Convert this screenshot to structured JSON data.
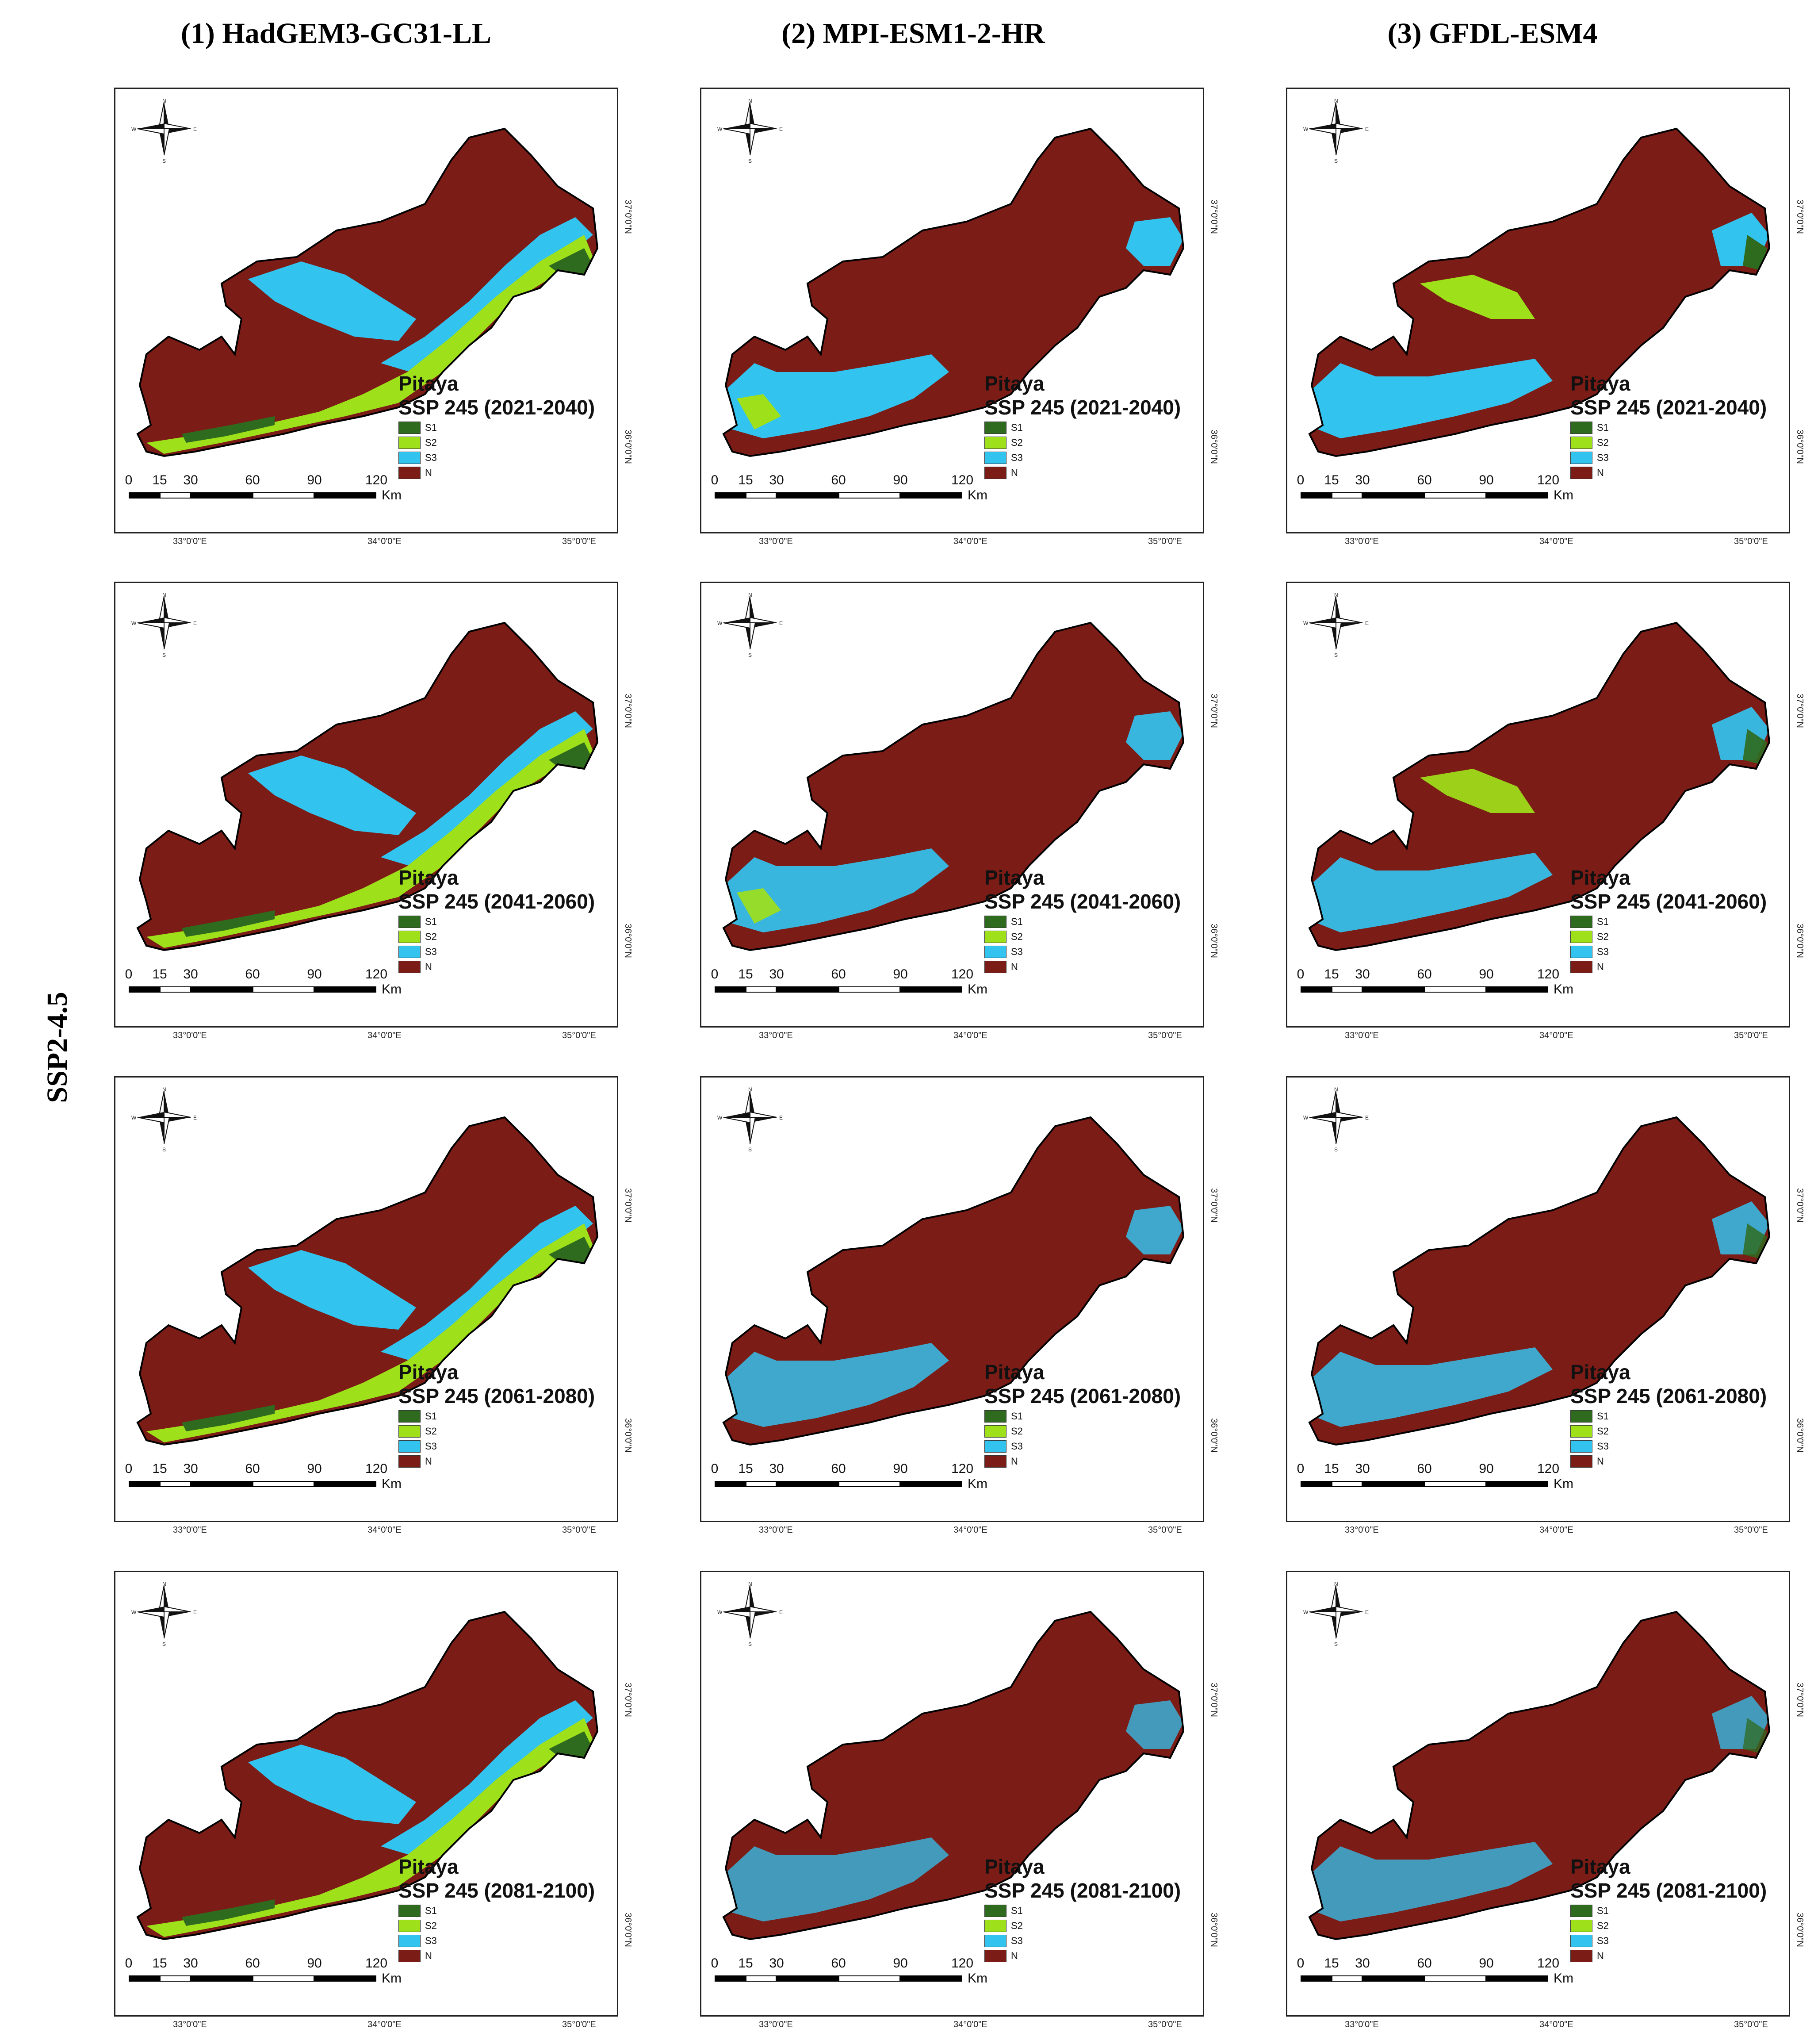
{
  "figure": {
    "row_label": "SSP2-4.5",
    "models": [
      "(1) HadGEM3-GC31-LL",
      "(2) MPI-ESM1-2-HR",
      "(3) GFDL-ESM4"
    ],
    "crop": "Pitaya",
    "periods": [
      "SSP 245 (2021-2040)",
      "SSP 245 (2041-2060)",
      "SSP 245 (2061-2080)",
      "SSP 245 (2081-2100)"
    ],
    "legend": [
      {
        "label": "S1",
        "color": "#2f6b1f"
      },
      {
        "label": "S2",
        "color": "#9ee01a"
      },
      {
        "label": "S3",
        "color": "#33c3ef"
      },
      {
        "label": "N",
        "color": "#7b1c16"
      }
    ],
    "scale_ticks": [
      "0",
      "15",
      "30",
      "60",
      "90",
      "120"
    ],
    "scale_unit": "Km",
    "lon_labels": [
      "33°0'0\"E",
      "34°0'0\"E",
      "35°0'0\"E"
    ],
    "lat_labels": [
      "37°0'0\"N",
      "36°0'0\"N"
    ],
    "compass_dirs": [
      "N",
      "E",
      "S",
      "W"
    ],
    "colors": {
      "background": "#ffffff",
      "map_border": "#000000",
      "unsuitable": "#7b1c16"
    }
  }
}
